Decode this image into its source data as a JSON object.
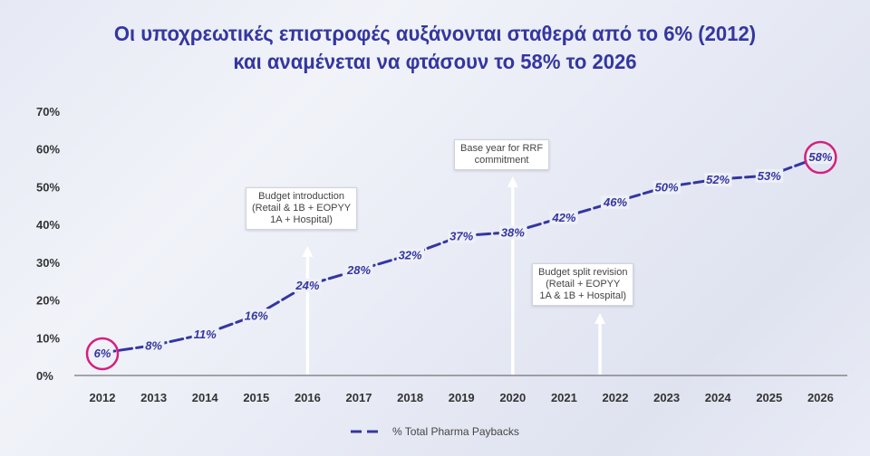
{
  "chart_data": {
    "type": "line",
    "title": [
      "Οι υποχρεωτικές επιστροφές αυξάνονται σταθερά από το 6% (2012)",
      "και αναμένεται να φτάσουν το 58% το 2026"
    ],
    "x": [
      "2012",
      "2013",
      "2014",
      "2015",
      "2016",
      "2017",
      "2018",
      "2019",
      "2020",
      "2021",
      "2022",
      "2023",
      "2024",
      "2025",
      "2026"
    ],
    "series": [
      {
        "name": "% Total Pharma Paybacks",
        "values": [
          6,
          8,
          11,
          16,
          24,
          28,
          32,
          37,
          38,
          42,
          46,
          50,
          52,
          53,
          58
        ],
        "labels": [
          "6%",
          "8%",
          "11%",
          "16%",
          "24%",
          "28%",
          "32%",
          "37%",
          "38%",
          "42%",
          "46%",
          "50%",
          "52%",
          "53%",
          "58%"
        ],
        "color": "#3436a0",
        "style": "dashed"
      }
    ],
    "ylim": [
      0,
      70
    ],
    "yticks": [
      0,
      10,
      20,
      30,
      40,
      50,
      60,
      70
    ],
    "ytick_labels": [
      "0%",
      "10%",
      "20%",
      "30%",
      "40%",
      "50%",
      "60%",
      "70%"
    ],
    "highlighted_points": [
      "2012",
      "2026"
    ],
    "highlight_color": "#d4207e",
    "annotations": [
      {
        "x": "2016",
        "lines": [
          "Budget introduction",
          "(Retail & 1B + EOPYY",
          "1A + Hospital)"
        ]
      },
      {
        "x": "2020",
        "lines": [
          "Base year for RRF",
          "commitment"
        ]
      },
      {
        "x": "2021/2022",
        "lines": [
          "Budget split revision",
          "(Retail + EOPYY",
          "1A & 1B + Hospital)"
        ]
      }
    ],
    "legend": {
      "position": "bottom-center",
      "label": "% Total Pharma Paybacks"
    },
    "grid": false
  }
}
